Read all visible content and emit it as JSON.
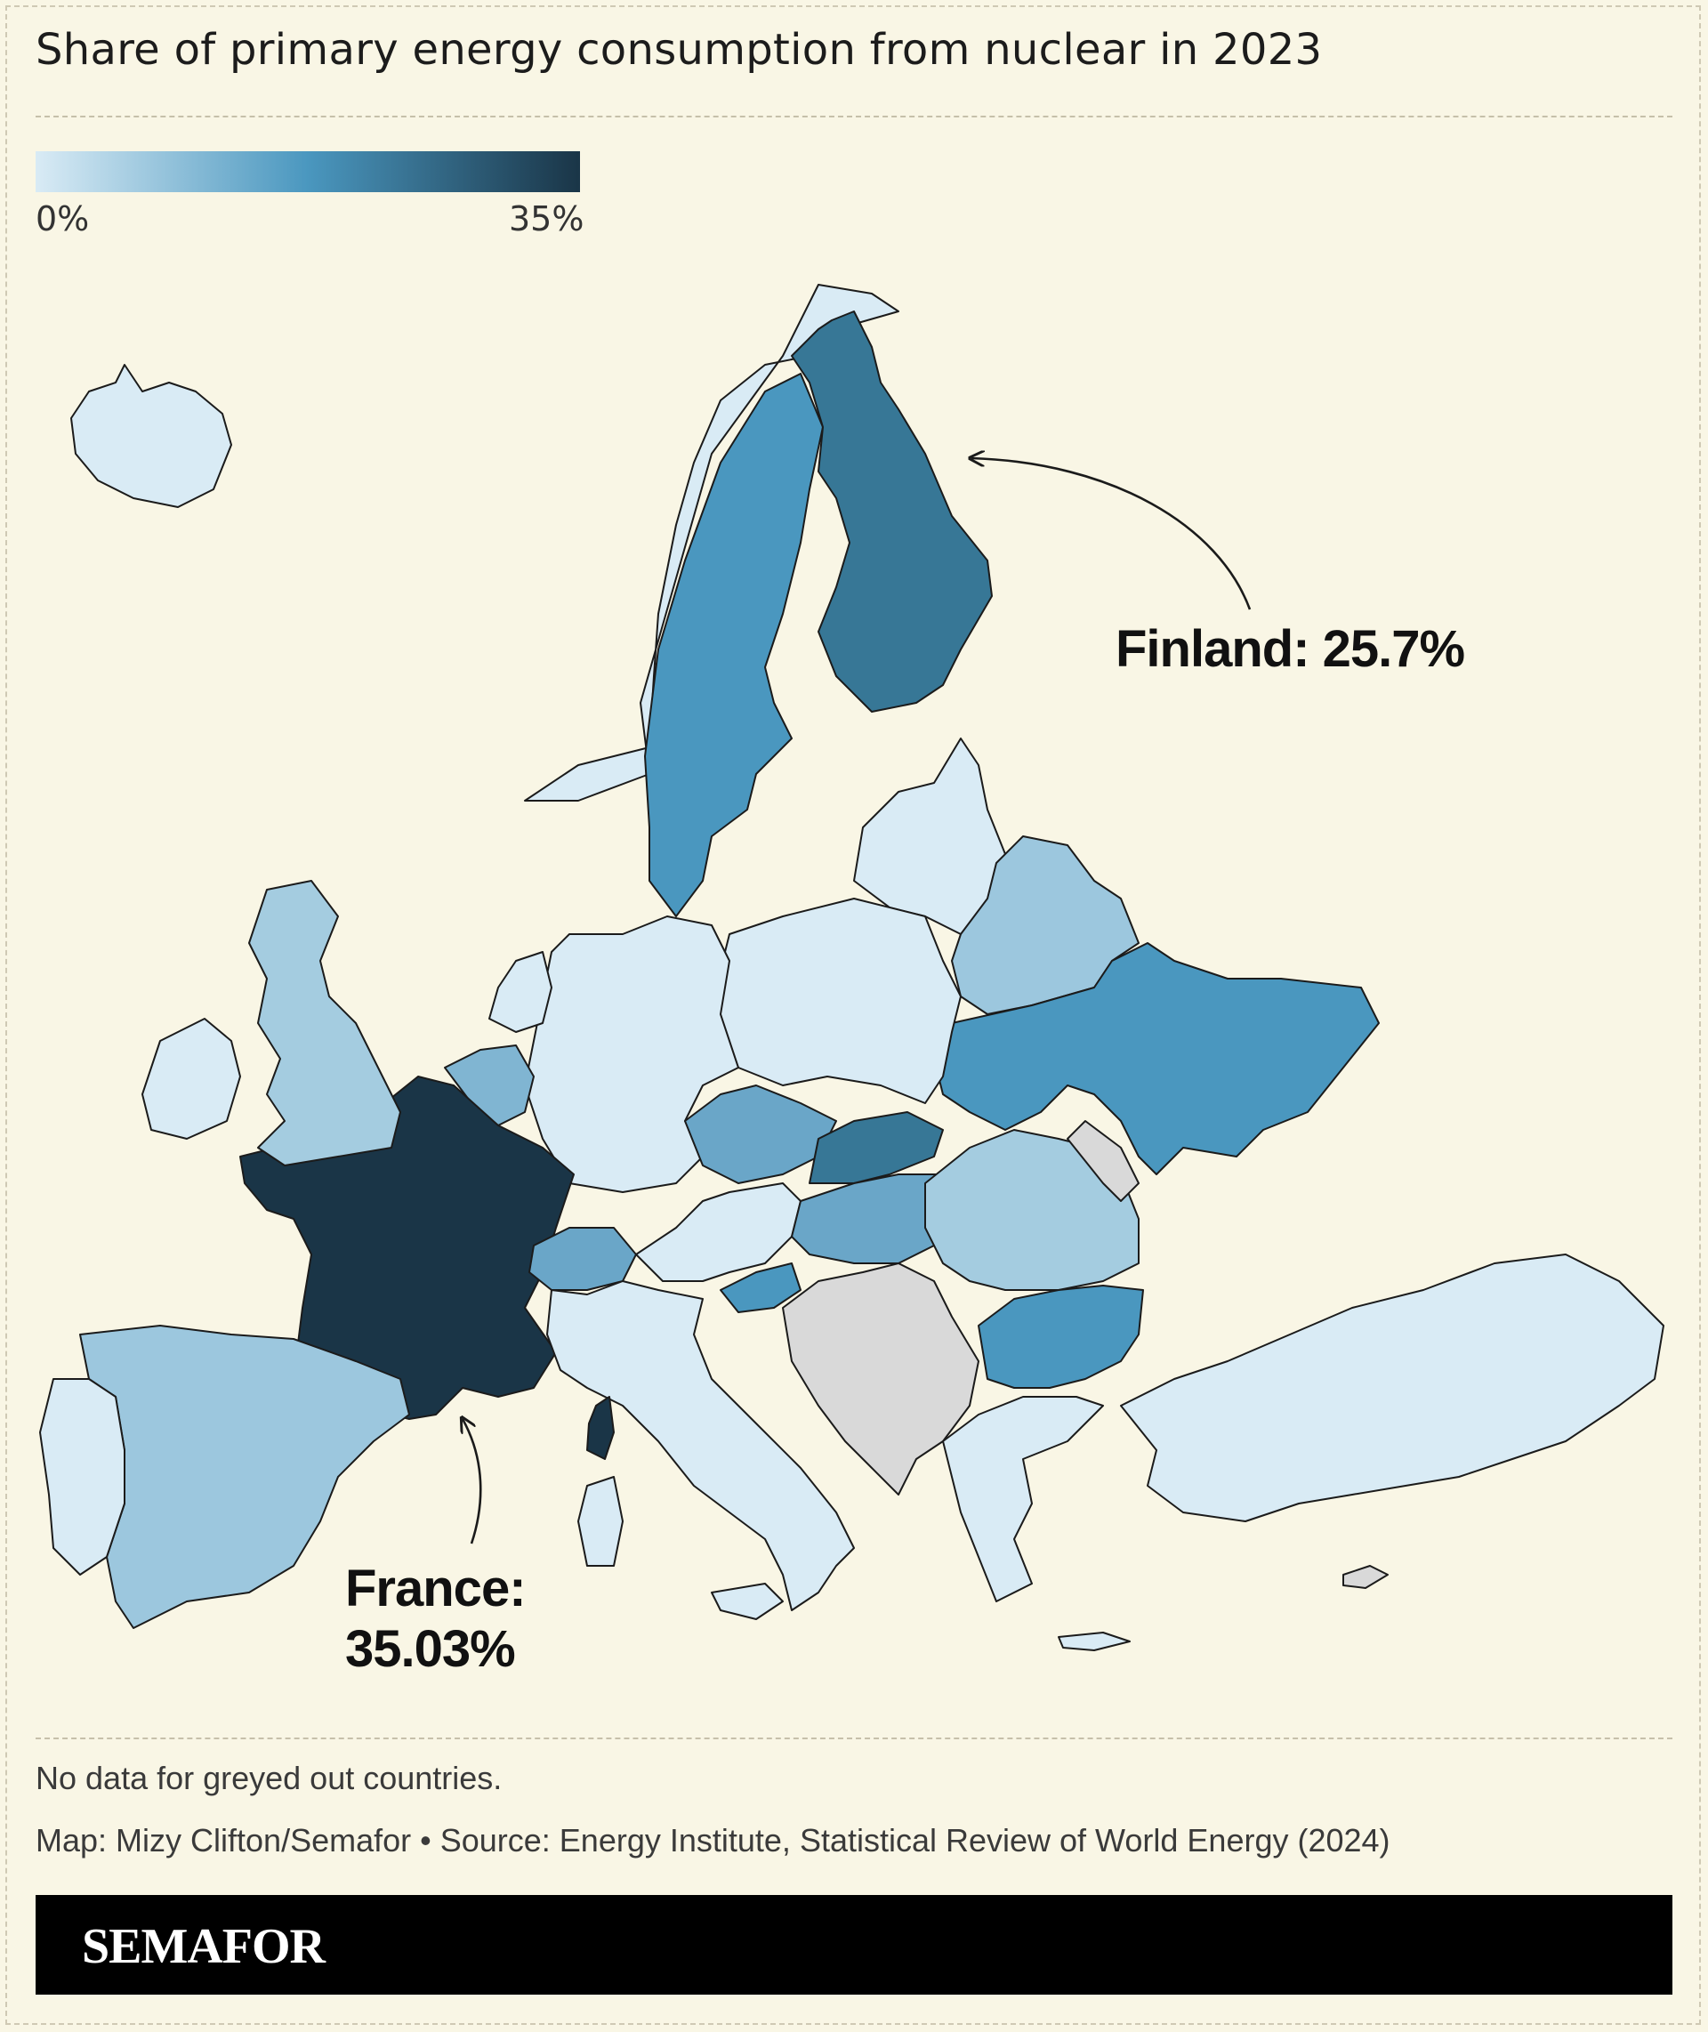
{
  "title": "Share of primary energy consumption from nuclear in 2023",
  "legend": {
    "min_label": "0%",
    "max_label": "35%",
    "range": [
      0,
      35
    ],
    "colors": [
      "#d9ebf5",
      "#4a97bf",
      "#1a3547"
    ]
  },
  "map": {
    "region": "Europe",
    "no_data_color": "#d9d9d9",
    "countries": [
      {
        "name": "Iceland",
        "color": "#d9ebf5",
        "level": 0
      },
      {
        "name": "Norway",
        "color": "#d9ebf5",
        "level": 0
      },
      {
        "name": "Sweden",
        "color": "#4a97bf",
        "level": 0.5
      },
      {
        "name": "Finland",
        "color": "#377796",
        "level": 0.73
      },
      {
        "name": "United Kingdom",
        "color": "#a4cce0",
        "level": 0.2
      },
      {
        "name": "Ireland",
        "color": "#d9ebf5",
        "level": 0
      },
      {
        "name": "France",
        "color": "#1a3547",
        "level": 1.0
      },
      {
        "name": "Spain",
        "color": "#9cc7de",
        "level": 0.22
      },
      {
        "name": "Portugal",
        "color": "#d9ebf5",
        "level": 0
      },
      {
        "name": "Belgium",
        "color": "#80b5d2",
        "level": 0.3
      },
      {
        "name": "Netherlands",
        "color": "#d9ebf5",
        "level": 0.03
      },
      {
        "name": "Germany",
        "color": "#d9ebf5",
        "level": 0.02
      },
      {
        "name": "Switzerland",
        "color": "#6aa6c8",
        "level": 0.4
      },
      {
        "name": "Italy",
        "color": "#d9ebf5",
        "level": 0
      },
      {
        "name": "Poland",
        "color": "#d9ebf5",
        "level": 0
      },
      {
        "name": "Czechia",
        "color": "#6aa6c8",
        "level": 0.4
      },
      {
        "name": "Slovakia",
        "color": "#377796",
        "level": 0.7
      },
      {
        "name": "Hungary",
        "color": "#6aa6c8",
        "level": 0.4
      },
      {
        "name": "Slovenia",
        "color": "#4a97bf",
        "level": 0.5
      },
      {
        "name": "Austria",
        "color": "#d9ebf5",
        "level": 0
      },
      {
        "name": "Romania",
        "color": "#a4cce0",
        "level": 0.18
      },
      {
        "name": "Bulgaria",
        "color": "#4a97bf",
        "level": 0.5
      },
      {
        "name": "Ukraine",
        "color": "#4a97bf",
        "level": 0.5
      },
      {
        "name": "Belarus",
        "color": "#9cc7de",
        "level": 0.22
      },
      {
        "name": "Baltic States",
        "color": "#d9ebf5",
        "level": 0
      },
      {
        "name": "Turkey",
        "color": "#d9ebf5",
        "level": 0
      },
      {
        "name": "Greece",
        "color": "#d9ebf5",
        "level": 0
      },
      {
        "name": "Moldova",
        "color": "#d9d9d9",
        "level": null
      },
      {
        "name": "Western Balkans",
        "color": "#d9d9d9",
        "level": null
      },
      {
        "name": "Cyprus",
        "color": "#d9d9d9",
        "level": null
      }
    ]
  },
  "callouts": {
    "finland": "Finland: 25.7%",
    "france_line1": "France:",
    "france_line2": "35.03%"
  },
  "footer": {
    "note": "No data for greyed out countries.",
    "source": "Map: Mizy Clifton/Semafor • Source: Energy Institute, Statistical Review of World Energy (2024)",
    "brand": "SEMAFOR"
  }
}
